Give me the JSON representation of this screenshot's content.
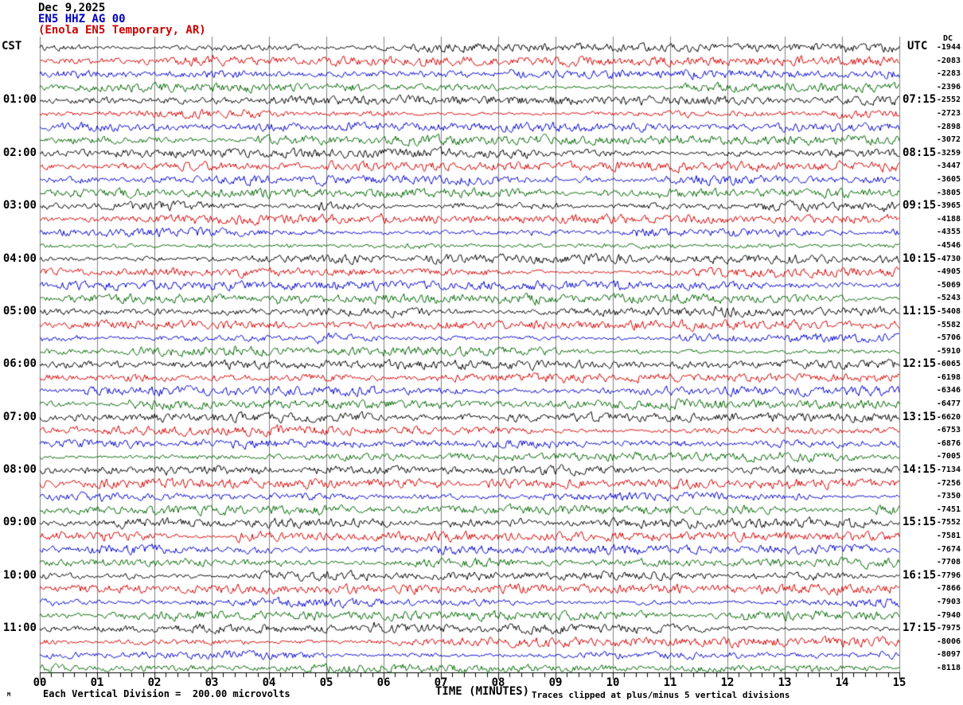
{
  "header": {
    "date": "Dec 9,2025",
    "scnl": "EN5 HHZ AG 00",
    "station": "(Enola EN5 Temporary, AR)"
  },
  "left_axis": {
    "tz": "CST",
    "hours": [
      "01:00",
      "02:00",
      "03:00",
      "04:00",
      "05:00",
      "06:00",
      "07:00",
      "08:00",
      "09:00",
      "10:00",
      "11:00"
    ]
  },
  "right_axis": {
    "tz": "UTC",
    "dc_label": "DC",
    "hours": [
      "07:15",
      "08:15",
      "09:15",
      "10:15",
      "11:15",
      "12:15",
      "13:15",
      "14:15",
      "15:15",
      "16:15",
      "17:15"
    ]
  },
  "dc_values": [
    "-1944",
    "-2083",
    "-2283",
    "-2396",
    "-2552",
    "-2723",
    "-2898",
    "-3072",
    "-3259",
    "-3447",
    "-3605",
    "-3805",
    "-3965",
    "-4188",
    "-4355",
    "-4546",
    "-4730",
    "-4905",
    "-5069",
    "-5243",
    "-5408",
    "-5582",
    "-5706",
    "-5910",
    "-6065",
    "-6198",
    "-6346",
    "-6477",
    "-6620",
    "-6753",
    "-6876",
    "-7005",
    "-7134",
    "-7256",
    "-7350",
    "-7451",
    "-7552",
    "-7581",
    "-7674",
    "-7708",
    "-7796",
    "-7866",
    "-7903",
    "-7940",
    "-7975",
    "-8006",
    "-8097",
    "-8118"
  ],
  "x_axis": {
    "labels": [
      "00",
      "01",
      "02",
      "03",
      "04",
      "05",
      "06",
      "07",
      "08",
      "09",
      "10",
      "11",
      "12",
      "13",
      "14",
      "15"
    ],
    "title": "TIME (MINUTES)"
  },
  "footer": {
    "left_mark": "M",
    "scale": "Each Vertical Division =  200.00 microvolts",
    "clip": "Traces clipped at plus/minus 5 vertical divisions"
  },
  "colors": {
    "trace_cycle": [
      "#000000",
      "#d40000",
      "#0000cc",
      "#006600"
    ],
    "grid": "#808080",
    "axis": "#000000",
    "title_date": "#000000",
    "title_scnl": "#0000bb",
    "title_station": "#cc0000"
  },
  "chart_data": {
    "type": "line",
    "subtype": "helicorder-seismogram",
    "title": "Dec 9,2025 EN5 HHZ AG 00 (Enola EN5 Temporary, AR)",
    "xlabel": "TIME (MINUTES)",
    "x_range": [
      0,
      15
    ],
    "x_major_tick_minutes": 1,
    "x_minor_tick_minutes": 0.2,
    "minutes_per_trace_line": 15,
    "trace_lines_per_hour": 4,
    "num_trace_lines": 48,
    "trace_color_cycle": [
      "black",
      "red",
      "blue",
      "green"
    ],
    "left_time_labels_cst": [
      "01:00",
      "02:00",
      "03:00",
      "04:00",
      "05:00",
      "06:00",
      "07:00",
      "08:00",
      "09:00",
      "10:00",
      "11:00"
    ],
    "right_time_labels_utc": [
      "07:15",
      "08:15",
      "09:15",
      "10:15",
      "11:15",
      "12:15",
      "13:15",
      "14:15",
      "15:15",
      "16:15",
      "17:15"
    ],
    "dc_offsets_microvolts": [
      -1944,
      -2083,
      -2283,
      -2396,
      -2552,
      -2723,
      -2898,
      -3072,
      -3259,
      -3447,
      -3605,
      -3805,
      -3965,
      -4188,
      -4355,
      -4546,
      -4730,
      -4905,
      -5069,
      -5243,
      -5408,
      -5582,
      -5706,
      -5910,
      -6065,
      -6198,
      -6346,
      -6477,
      -6620,
      -6753,
      -6876,
      -7005,
      -7134,
      -7256,
      -7350,
      -7451,
      -7552,
      -7581,
      -7674,
      -7708,
      -7796,
      -7866,
      -7903,
      -7940,
      -7975,
      -8006,
      -8097,
      -8118
    ],
    "vertical_division_microvolts": 200.0,
    "clip_divisions": 5,
    "waveform_description": "continuous background microseismic noise, peak amplitude under 1 vertical division on all 48 traces",
    "grid": "vertical gray lines at each minute",
    "legend_position": "none"
  }
}
